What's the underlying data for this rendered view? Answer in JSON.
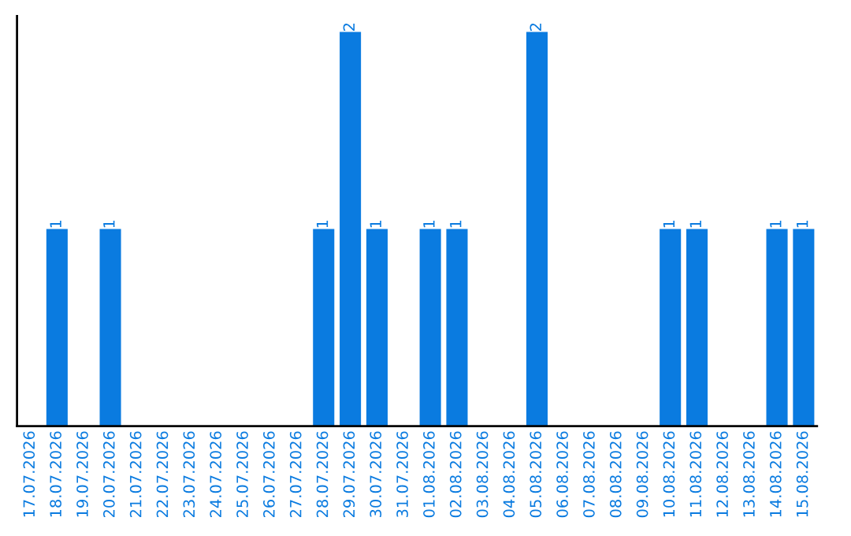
{
  "chart_data": {
    "type": "bar",
    "categories": [
      "17.07.2026",
      "18.07.2026",
      "19.07.2026",
      "20.07.2026",
      "21.07.2026",
      "22.07.2026",
      "23.07.2026",
      "24.07.2026",
      "25.07.2026",
      "26.07.2026",
      "27.07.2026",
      "28.07.2026",
      "29.07.2026",
      "30.07.2026",
      "31.07.2026",
      "01.08.2026",
      "02.08.2026",
      "03.08.2026",
      "04.08.2026",
      "05.08.2026",
      "06.08.2026",
      "07.08.2026",
      "08.08.2026",
      "09.08.2026",
      "10.08.2026",
      "11.08.2026",
      "12.08.2026",
      "13.08.2026",
      "14.08.2026",
      "15.08.2026"
    ],
    "values": [
      0,
      1,
      0,
      1,
      0,
      0,
      0,
      0,
      0,
      0,
      0,
      1,
      2,
      1,
      0,
      1,
      1,
      0,
      0,
      2,
      0,
      0,
      0,
      0,
      1,
      1,
      0,
      0,
      1,
      1
    ],
    "value_labels": [
      null,
      "1",
      null,
      "1",
      null,
      null,
      null,
      null,
      null,
      null,
      null,
      "1",
      "2",
      "1",
      null,
      "1",
      "1",
      null,
      null,
      "2",
      null,
      null,
      null,
      null,
      "1",
      "1",
      null,
      null,
      "1",
      "1"
    ],
    "color": "#0a7be0",
    "ylim": [
      0,
      2.08
    ],
    "tick_labels": "x",
    "grid": false,
    "legend": false
  }
}
